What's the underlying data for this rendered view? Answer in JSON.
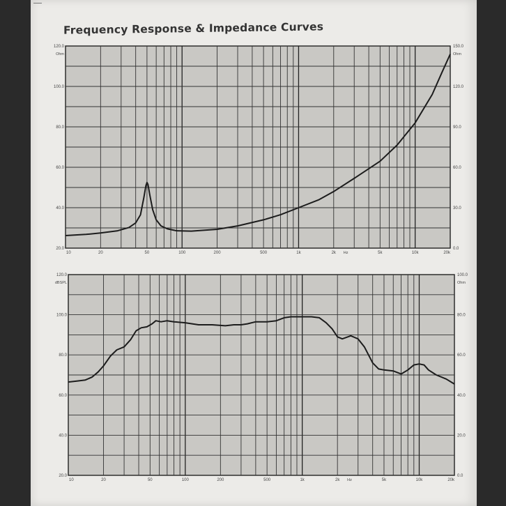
{
  "title": "Frequency Response  &  Impedance Curves",
  "chart_data": [
    {
      "type": "line",
      "name": "impedance",
      "xscale": "log",
      "xlim": [
        10,
        20000
      ],
      "ylim": [
        20,
        120
      ],
      "ylim_right": [
        0,
        150
      ],
      "x_ticks": [
        {
          "v": 10,
          "label": "10"
        },
        {
          "v": 20,
          "label": "20"
        },
        {
          "v": 50,
          "label": "50"
        },
        {
          "v": 100,
          "label": "100"
        },
        {
          "v": 200,
          "label": "200"
        },
        {
          "v": 500,
          "label": "500"
        },
        {
          "v": 1000,
          "label": "1k"
        },
        {
          "v": 2000,
          "label": "2k"
        },
        {
          "v": 5000,
          "label": "5k"
        },
        {
          "v": 10000,
          "label": "10k"
        },
        {
          "v": 20000,
          "label": "20k"
        }
      ],
      "x_unit": "Hz",
      "y_ticks": [
        {
          "v": 20,
          "label": "20.0"
        },
        {
          "v": 40,
          "label": "40.0"
        },
        {
          "v": 60,
          "label": "60.0"
        },
        {
          "v": 80,
          "label": "80.0"
        },
        {
          "v": 100,
          "label": "100.0"
        },
        {
          "v": 120,
          "label": "120.0"
        }
      ],
      "y_unit": "Ohm",
      "y_right_ticks": [
        {
          "v": 0,
          "label": "0.0"
        },
        {
          "v": 30,
          "label": "30.0"
        },
        {
          "v": 60,
          "label": "60.0"
        },
        {
          "v": 90,
          "label": "90.0"
        },
        {
          "v": 120,
          "label": "120.0"
        },
        {
          "v": 150,
          "label": "150.0"
        }
      ],
      "y_right_unit": "Ohm",
      "points": [
        [
          10,
          26.2
        ],
        [
          15,
          26.8
        ],
        [
          20,
          27.5
        ],
        [
          28,
          28.6
        ],
        [
          35,
          30.2
        ],
        [
          40,
          32.5
        ],
        [
          44,
          36.5
        ],
        [
          47,
          45
        ],
        [
          49,
          51
        ],
        [
          50,
          52.5
        ],
        [
          51,
          51.5
        ],
        [
          53,
          46
        ],
        [
          56,
          39
        ],
        [
          60,
          34
        ],
        [
          66,
          31
        ],
        [
          75,
          29.5
        ],
        [
          90,
          28.6
        ],
        [
          120,
          28.4
        ],
        [
          200,
          29.3
        ],
        [
          300,
          31
        ],
        [
          500,
          34
        ],
        [
          700,
          36.5
        ],
        [
          1000,
          40
        ],
        [
          1500,
          44
        ],
        [
          2000,
          48
        ],
        [
          3000,
          54.5
        ],
        [
          5000,
          63
        ],
        [
          7000,
          71
        ],
        [
          10000,
          82
        ],
        [
          14000,
          96
        ],
        [
          17000,
          107
        ],
        [
          20000,
          116
        ]
      ]
    },
    {
      "type": "line",
      "name": "frequency response",
      "xscale": "log",
      "xlim": [
        10,
        20000
      ],
      "ylim": [
        20,
        120
      ],
      "ylim_right": [
        0,
        100
      ],
      "x_ticks": [
        {
          "v": 10,
          "label": "10"
        },
        {
          "v": 20,
          "label": "20"
        },
        {
          "v": 50,
          "label": "50"
        },
        {
          "v": 100,
          "label": "100"
        },
        {
          "v": 200,
          "label": "200"
        },
        {
          "v": 500,
          "label": "500"
        },
        {
          "v": 1000,
          "label": "1k"
        },
        {
          "v": 2000,
          "label": "2k"
        },
        {
          "v": 5000,
          "label": "5k"
        },
        {
          "v": 10000,
          "label": "10k"
        },
        {
          "v": 20000,
          "label": "20k"
        }
      ],
      "x_unit": "Hz",
      "y_ticks": [
        {
          "v": 20,
          "label": "20.0"
        },
        {
          "v": 40,
          "label": "40.0"
        },
        {
          "v": 60,
          "label": "60.0"
        },
        {
          "v": 80,
          "label": "80.0"
        },
        {
          "v": 100,
          "label": "100.0"
        },
        {
          "v": 120,
          "label": "120.0"
        }
      ],
      "y_unit": "dBSPL",
      "y_right_ticks": [
        {
          "v": 0,
          "label": "0.0"
        },
        {
          "v": 20,
          "label": "20.0"
        },
        {
          "v": 40,
          "label": "40.0"
        },
        {
          "v": 60,
          "label": "60.0"
        },
        {
          "v": 80,
          "label": "80.0"
        },
        {
          "v": 100,
          "label": "100.0"
        }
      ],
      "y_right_unit": "Ohm",
      "points": [
        [
          10,
          66.5
        ],
        [
          12,
          67
        ],
        [
          14,
          67.5
        ],
        [
          16,
          69
        ],
        [
          18,
          71.5
        ],
        [
          20,
          74.5
        ],
        [
          23,
          79.5
        ],
        [
          26,
          82.5
        ],
        [
          30,
          84
        ],
        [
          34,
          87.5
        ],
        [
          38,
          92
        ],
        [
          42,
          93.5
        ],
        [
          47,
          94
        ],
        [
          52,
          95.5
        ],
        [
          56,
          97
        ],
        [
          62,
          96.5
        ],
        [
          70,
          97
        ],
        [
          80,
          96.5
        ],
        [
          100,
          96
        ],
        [
          130,
          95
        ],
        [
          170,
          95
        ],
        [
          220,
          94.5
        ],
        [
          260,
          95
        ],
        [
          300,
          95
        ],
        [
          340,
          95.5
        ],
        [
          400,
          96.5
        ],
        [
          500,
          96.5
        ],
        [
          600,
          97
        ],
        [
          700,
          98.5
        ],
        [
          800,
          99
        ],
        [
          1000,
          99
        ],
        [
          1200,
          99
        ],
        [
          1400,
          98.5
        ],
        [
          1600,
          96
        ],
        [
          1800,
          93
        ],
        [
          2000,
          89
        ],
        [
          2200,
          88
        ],
        [
          2600,
          89.5
        ],
        [
          3000,
          88
        ],
        [
          3400,
          84
        ],
        [
          4000,
          76
        ],
        [
          4500,
          73
        ],
        [
          5000,
          72.5
        ],
        [
          6000,
          72
        ],
        [
          7000,
          70.5
        ],
        [
          8000,
          72.5
        ],
        [
          9000,
          75
        ],
        [
          10000,
          75.5
        ],
        [
          11000,
          75
        ],
        [
          12000,
          72.5
        ],
        [
          14000,
          70
        ],
        [
          17000,
          68
        ],
        [
          20000,
          65.5
        ]
      ]
    }
  ]
}
